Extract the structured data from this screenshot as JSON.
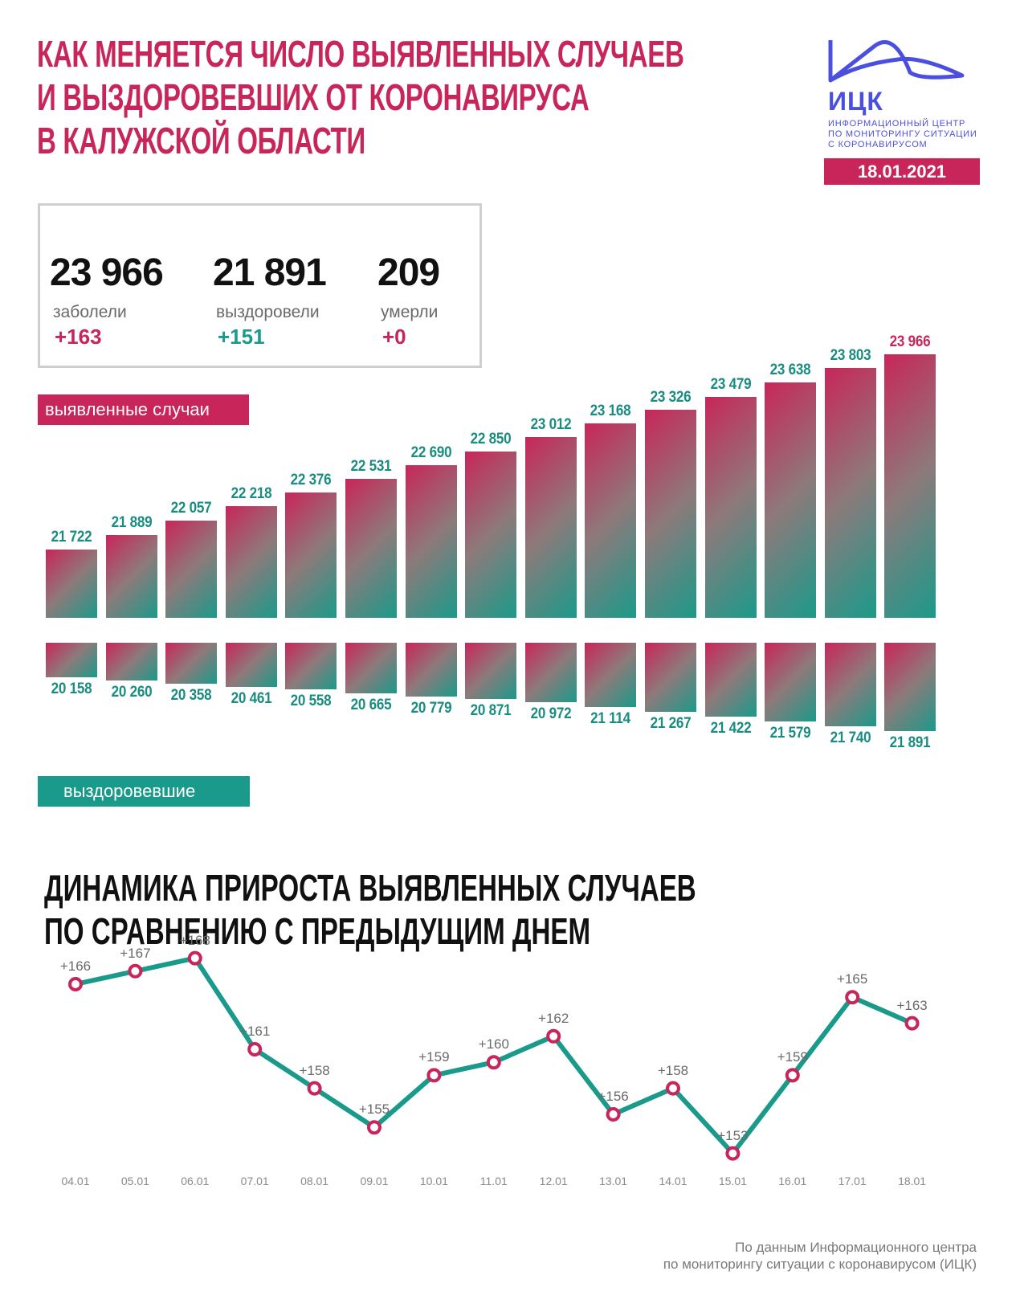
{
  "header": {
    "title": "КАК МЕНЯЕТСЯ ЧИСЛО ВЫЯВЛЕННЫХ СЛУЧАЕВ\nИ ВЫЗДОРОВЕВШИХ ОТ КОРОНАВИРУСА\nВ КАЛУЖСКОЙ ОБЛАСТИ",
    "logo": {
      "abbr": "ИЦК",
      "text": "ИНФОРМАЦИОННЫЙ ЦЕНТР\nПО МОНИТОРИНГУ СИТУАЦИИ\nС КОРОНАВИРУСОМ",
      "icon": "mountain-wave-icon"
    },
    "date": "18.01.2021"
  },
  "summary": {
    "infected": {
      "value": "23 966",
      "label": "заболели",
      "delta": "+163"
    },
    "recovered": {
      "value": "21 891",
      "label": "выздоровели",
      "delta": "+151"
    },
    "died": {
      "value": "209",
      "label": "умерли",
      "delta": "+0"
    }
  },
  "legend": {
    "cases": "выявленные случаи",
    "recovered": "выздоровевшие"
  },
  "colors": {
    "accent_pink": "#c8265a",
    "accent_teal": "#1a9a8a",
    "logo_blue": "#4b4fe0"
  },
  "subtitle": "ДИНАМИКА ПРИРОСТА ВЫЯВЛЕННЫХ СЛУЧАЕВ\nПО СРАВНЕНИЮ С ПРЕДЫДУЩИМ ДНЕМ",
  "footer": "По данным Информационного центра\nпо мониторингу ситуации с коронавирусом (ИЦК)",
  "chart_data": [
    {
      "type": "bar",
      "title": "Как меняется число выявленных случаев и выздоровевших от коронавируса в Калужской области",
      "categories": [
        "04.01",
        "05.01",
        "06.01",
        "07.01",
        "08.01",
        "09.01",
        "10.01",
        "11.01",
        "12.01",
        "13.01",
        "14.01",
        "15.01",
        "16.01",
        "17.01",
        "18.01"
      ],
      "series": [
        {
          "name": "выявленные случаи",
          "values": [
            21722,
            21889,
            22057,
            22218,
            22376,
            22531,
            22690,
            22850,
            23012,
            23168,
            23326,
            23479,
            23638,
            23803,
            23966
          ],
          "labels": [
            "21 722",
            "21 889",
            "22 057",
            "22 218",
            "22 376",
            "22 531",
            "22 690",
            "22 850",
            "23 012",
            "23 168",
            "23 326",
            "23 479",
            "23 638",
            "23 803",
            "23 966"
          ]
        },
        {
          "name": "выздоровевшие",
          "values": [
            20158,
            20260,
            20358,
            20461,
            20558,
            20665,
            20779,
            20871,
            20972,
            21114,
            21267,
            21422,
            21579,
            21740,
            21891
          ],
          "labels": [
            "20 158",
            "20 260",
            "20 358",
            "20 461",
            "20 558",
            "20 665",
            "20 779",
            "20 871",
            "20 972",
            "21 114",
            "21 267",
            "21 422",
            "21 579",
            "21 740",
            "21 891"
          ]
        }
      ],
      "xlabel": "",
      "ylabel": "",
      "grid": false
    },
    {
      "type": "line",
      "title": "Динамика прироста выявленных случаев по сравнению с предыдущим днем",
      "categories": [
        "04.01",
        "05.01",
        "06.01",
        "07.01",
        "08.01",
        "09.01",
        "10.01",
        "11.01",
        "12.01",
        "13.01",
        "14.01",
        "15.01",
        "16.01",
        "17.01",
        "18.01"
      ],
      "values": [
        166,
        167,
        168,
        161,
        158,
        155,
        159,
        160,
        162,
        156,
        158,
        153,
        159,
        165,
        163
      ],
      "labels": [
        "+166",
        "+167",
        "+168",
        "+161",
        "+158",
        "+155",
        "+159",
        "+160",
        "+162",
        "+156",
        "+158",
        "+153",
        "+159",
        "+165",
        "+163"
      ],
      "xlabel": "",
      "ylabel": "",
      "grid": false
    }
  ]
}
